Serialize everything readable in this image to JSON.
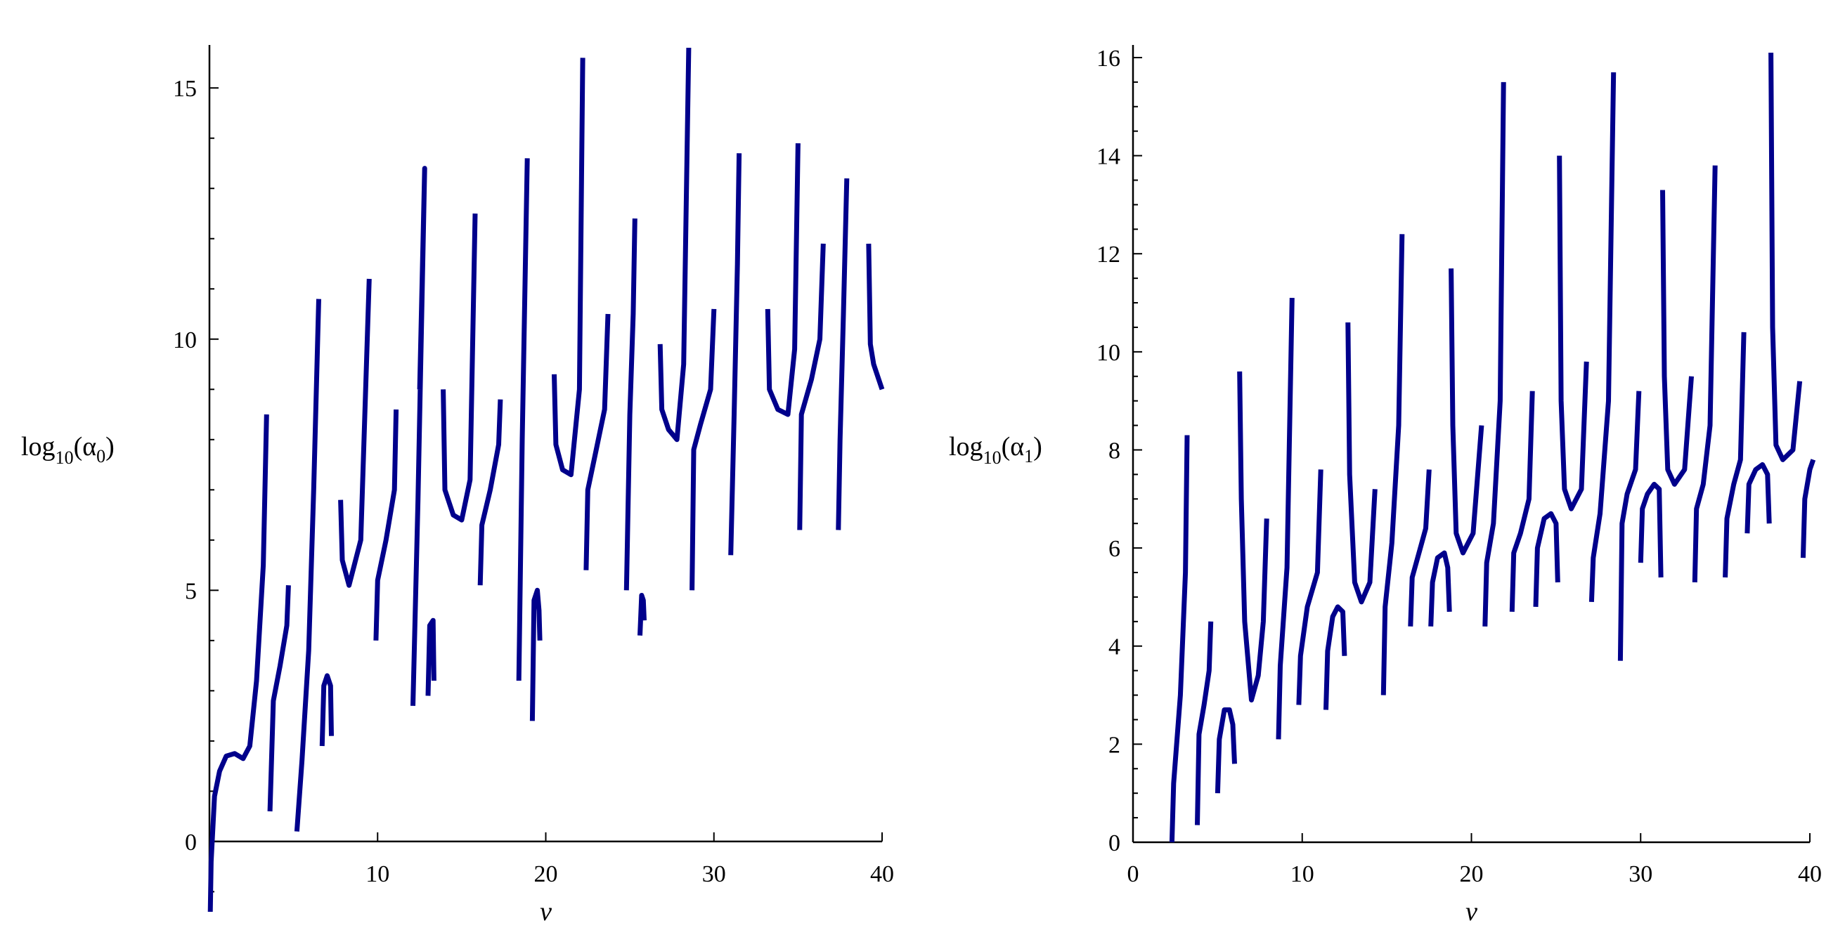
{
  "colors": {
    "curve": "#00008B",
    "axis": "#000000"
  },
  "chart_data": [
    {
      "type": "line",
      "xlabel": "v",
      "ylabel_prefix": "log",
      "ylabel_base": "10",
      "ylabel_var": "α",
      "ylabel_index": "0",
      "xlim": [
        0,
        40
      ],
      "ylim": [
        -1.4,
        15.8
      ],
      "x_ticks": [
        10,
        20,
        30,
        40
      ],
      "y_ticks": [
        0,
        5,
        10,
        15
      ],
      "y_minor_step": 1,
      "x_axis_at_y": 0,
      "y_axis_at_x": 0,
      "grid": false,
      "series": [
        {
          "x": [
            0.05,
            0.1,
            0.3,
            0.6,
            1.0,
            1.5,
            2.0,
            2.4,
            2.8,
            3.2,
            3.4
          ],
          "y": [
            -1.4,
            -0.4,
            0.9,
            1.4,
            1.7,
            1.75,
            1.65,
            1.9,
            3.2,
            5.5,
            8.5
          ]
        },
        {
          "x": [
            3.6,
            3.8,
            4.2,
            4.6,
            4.7
          ],
          "y": [
            0.6,
            2.8,
            3.5,
            4.3,
            5.1
          ]
        },
        {
          "x": [
            5.2,
            5.5,
            5.9,
            6.2,
            6.5
          ],
          "y": [
            0.2,
            1.6,
            3.8,
            7.0,
            10.8
          ]
        },
        {
          "x": [
            6.7,
            6.8,
            7.0,
            7.2,
            7.25
          ],
          "y": [
            1.9,
            3.1,
            3.3,
            3.1,
            2.1
          ]
        },
        {
          "x": [
            7.8,
            7.9,
            8.3,
            9.0,
            9.5
          ],
          "y": [
            6.8,
            5.6,
            5.1,
            6.0,
            11.2
          ]
        },
        {
          "x": [
            9.9,
            10.0,
            10.5,
            11.0,
            11.1
          ],
          "y": [
            4.0,
            5.2,
            6.0,
            7.0,
            8.6
          ]
        },
        {
          "x": [
            12.1,
            12.4,
            12.8,
            12.5
          ],
          "y": [
            2.7,
            6.8,
            13.4,
            9.0
          ]
        },
        {
          "x": [
            13.0,
            13.1,
            13.3,
            13.35
          ],
          "y": [
            2.9,
            4.3,
            4.4,
            3.2
          ]
        },
        {
          "x": [
            13.9,
            14.0,
            14.5,
            15.0,
            15.5,
            15.8
          ],
          "y": [
            9.0,
            7.0,
            6.5,
            6.4,
            7.2,
            12.5
          ]
        },
        {
          "x": [
            16.1,
            16.2,
            16.7,
            17.2,
            17.3
          ],
          "y": [
            5.1,
            6.3,
            7.0,
            7.9,
            8.8
          ]
        },
        {
          "x": [
            18.4,
            18.6,
            18.9
          ],
          "y": [
            3.2,
            8.0,
            13.6
          ]
        },
        {
          "x": [
            19.2,
            19.3,
            19.5,
            19.6,
            19.65
          ],
          "y": [
            2.4,
            4.8,
            5.0,
            4.6,
            4.0
          ]
        },
        {
          "x": [
            20.5,
            20.6,
            21.0,
            21.5,
            22.0,
            22.2
          ],
          "y": [
            9.3,
            7.9,
            7.4,
            7.3,
            9.0,
            15.6
          ]
        },
        {
          "x": [
            22.4,
            22.5,
            23.0,
            23.5,
            23.7
          ],
          "y": [
            5.4,
            7.0,
            7.8,
            8.6,
            10.5
          ]
        },
        {
          "x": [
            24.8,
            25.0,
            25.2,
            25.3
          ],
          "y": [
            5.0,
            8.5,
            10.5,
            12.4
          ]
        },
        {
          "x": [
            25.6,
            25.7,
            25.8,
            25.85
          ],
          "y": [
            4.1,
            4.9,
            4.8,
            4.4
          ]
        },
        {
          "x": [
            26.8,
            26.9,
            27.3,
            27.8,
            28.2,
            28.5
          ],
          "y": [
            9.9,
            8.6,
            8.2,
            8.0,
            9.5,
            15.8
          ]
        },
        {
          "x": [
            28.7,
            28.8,
            29.2,
            29.8,
            30.0
          ],
          "y": [
            5.0,
            7.8,
            8.3,
            9.0,
            10.6
          ]
        },
        {
          "x": [
            31.0,
            31.2,
            31.4,
            31.5
          ],
          "y": [
            5.7,
            8.5,
            11.5,
            13.7
          ]
        },
        {
          "x": [
            33.2,
            33.3,
            33.8,
            34.4,
            34.8,
            35.0
          ],
          "y": [
            10.6,
            9.0,
            8.6,
            8.5,
            9.8,
            13.9
          ]
        },
        {
          "x": [
            35.1,
            35.2,
            35.8,
            36.3,
            36.5
          ],
          "y": [
            6.2,
            8.5,
            9.2,
            10.0,
            11.9
          ]
        },
        {
          "x": [
            37.4,
            37.5,
            37.7,
            37.9
          ],
          "y": [
            6.2,
            8.0,
            10.5,
            13.2
          ]
        },
        {
          "x": [
            39.2,
            39.3,
            39.5,
            39.8,
            40.0
          ],
          "y": [
            11.9,
            9.9,
            9.5,
            9.2,
            9.0
          ]
        }
      ]
    },
    {
      "type": "line",
      "xlabel": "v",
      "ylabel_prefix": "log",
      "ylabel_base": "10",
      "ylabel_var": "α",
      "ylabel_index": "1",
      "xlim": [
        0,
        40
      ],
      "ylim": [
        0,
        16.2
      ],
      "x_ticks": [
        0,
        10,
        20,
        30,
        40
      ],
      "y_ticks": [
        0,
        2,
        4,
        6,
        8,
        10,
        12,
        14,
        16
      ],
      "y_minor_step": 0.5,
      "x_axis_at_y": 0,
      "y_axis_at_x": 0,
      "grid": false,
      "series": [
        {
          "x": [
            2.3,
            2.4,
            2.8,
            3.1,
            3.2
          ],
          "y": [
            0.0,
            1.2,
            3.0,
            5.5,
            8.3
          ]
        },
        {
          "x": [
            3.8,
            3.9,
            4.2,
            4.5,
            4.6
          ],
          "y": [
            0.35,
            2.2,
            2.8,
            3.5,
            4.5
          ]
        },
        {
          "x": [
            5.0,
            5.1,
            5.4,
            5.7,
            5.9,
            6.0
          ],
          "y": [
            1.0,
            2.1,
            2.7,
            2.7,
            2.4,
            1.6
          ]
        },
        {
          "x": [
            6.3,
            6.4,
            6.6,
            7.0,
            7.4,
            7.7,
            7.9
          ],
          "y": [
            9.6,
            7.0,
            4.5,
            2.9,
            3.4,
            4.5,
            6.6
          ]
        },
        {
          "x": [
            8.6,
            8.7,
            9.1,
            9.4
          ],
          "y": [
            2.1,
            3.6,
            5.6,
            11.1
          ]
        },
        {
          "x": [
            9.8,
            9.9,
            10.3,
            10.9,
            11.1
          ],
          "y": [
            2.8,
            3.8,
            4.8,
            5.5,
            7.6
          ]
        },
        {
          "x": [
            11.4,
            11.5,
            11.8,
            12.1,
            12.4,
            12.5
          ],
          "y": [
            2.7,
            3.9,
            4.6,
            4.8,
            4.7,
            3.8
          ]
        },
        {
          "x": [
            12.7,
            12.8,
            13.1,
            13.5,
            14.0,
            14.3
          ],
          "y": [
            10.6,
            7.5,
            5.3,
            4.9,
            5.3,
            7.2
          ]
        },
        {
          "x": [
            14.8,
            14.9,
            15.3,
            15.7,
            15.9
          ],
          "y": [
            3.0,
            4.8,
            6.1,
            8.5,
            12.4
          ]
        },
        {
          "x": [
            16.4,
            16.5,
            16.9,
            17.3,
            17.5
          ],
          "y": [
            4.4,
            5.4,
            5.9,
            6.4,
            7.6
          ]
        },
        {
          "x": [
            17.6,
            17.7,
            18.0,
            18.4,
            18.6,
            18.7
          ],
          "y": [
            4.4,
            5.3,
            5.8,
            5.9,
            5.6,
            4.7
          ]
        },
        {
          "x": [
            18.8,
            18.9,
            19.1,
            19.5,
            20.1,
            20.6
          ],
          "y": [
            11.7,
            8.5,
            6.3,
            5.9,
            6.3,
            8.5
          ]
        },
        {
          "x": [
            20.8,
            20.9,
            21.3,
            21.7,
            21.9
          ],
          "y": [
            4.4,
            5.7,
            6.5,
            9.0,
            15.5
          ]
        },
        {
          "x": [
            22.4,
            22.5,
            22.9,
            23.4,
            23.6
          ],
          "y": [
            4.7,
            5.9,
            6.3,
            7.0,
            9.2
          ]
        },
        {
          "x": [
            23.8,
            23.9,
            24.3,
            24.7,
            25.0,
            25.1
          ],
          "y": [
            4.8,
            6.0,
            6.6,
            6.7,
            6.5,
            5.3
          ]
        },
        {
          "x": [
            25.2,
            25.3,
            25.5,
            25.9,
            26.5,
            26.8
          ],
          "y": [
            14.0,
            9.0,
            7.2,
            6.8,
            7.2,
            9.8
          ]
        },
        {
          "x": [
            27.1,
            27.2,
            27.6,
            28.1,
            28.4
          ],
          "y": [
            4.9,
            5.8,
            6.7,
            9.0,
            15.7
          ]
        },
        {
          "x": [
            28.8,
            28.9,
            29.2,
            29.7,
            29.9
          ],
          "y": [
            3.7,
            6.5,
            7.1,
            7.6,
            9.2
          ]
        },
        {
          "x": [
            30.0,
            30.1,
            30.4,
            30.8,
            31.1,
            31.2
          ],
          "y": [
            5.7,
            6.8,
            7.1,
            7.3,
            7.2,
            5.4
          ]
        },
        {
          "x": [
            31.3,
            31.4,
            31.6,
            32.0,
            32.6,
            33.0
          ],
          "y": [
            13.3,
            9.5,
            7.6,
            7.3,
            7.6,
            9.5
          ]
        },
        {
          "x": [
            33.2,
            33.3,
            33.7,
            34.1,
            34.4
          ],
          "y": [
            5.3,
            6.8,
            7.3,
            8.5,
            13.8
          ]
        },
        {
          "x": [
            35.0,
            35.1,
            35.5,
            35.9,
            36.1
          ],
          "y": [
            5.4,
            6.6,
            7.3,
            7.8,
            10.4
          ]
        },
        {
          "x": [
            36.3,
            36.4,
            36.8,
            37.2,
            37.5,
            37.6
          ],
          "y": [
            6.3,
            7.3,
            7.6,
            7.7,
            7.5,
            6.5
          ]
        },
        {
          "x": [
            37.7,
            37.8,
            38.0,
            38.4,
            39.0,
            39.4
          ],
          "y": [
            16.1,
            10.5,
            8.1,
            7.8,
            8.0,
            9.4
          ]
        },
        {
          "x": [
            39.6,
            39.7,
            40.0,
            40.2
          ],
          "y": [
            5.8,
            7.0,
            7.6,
            7.8
          ]
        }
      ]
    }
  ]
}
